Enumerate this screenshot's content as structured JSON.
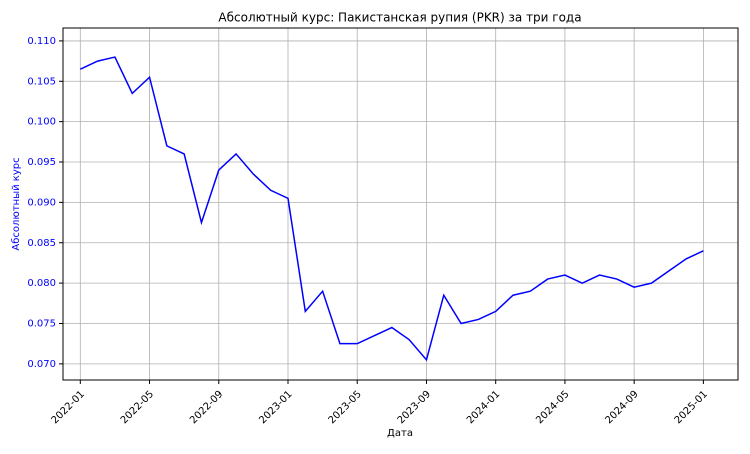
{
  "chart_data": {
    "type": "line",
    "title": "Абсолютный курс: Пакистанская рупия (PKR) за три года",
    "x_label": "Дата",
    "y_label": "Абсолютный курс",
    "x": [
      "2022-01",
      "2022-02",
      "2022-03",
      "2022-04",
      "2022-05",
      "2022-06",
      "2022-07",
      "2022-08",
      "2022-09",
      "2022-10",
      "2022-11",
      "2022-12",
      "2023-01",
      "2023-02",
      "2023-03",
      "2023-04",
      "2023-05",
      "2023-06",
      "2023-07",
      "2023-08",
      "2023-09",
      "2023-10",
      "2023-11",
      "2023-12",
      "2024-01",
      "2024-02",
      "2024-03",
      "2024-04",
      "2024-05",
      "2024-06",
      "2024-07",
      "2024-08",
      "2024-09",
      "2024-10",
      "2024-11",
      "2024-12",
      "2025-01"
    ],
    "series": [
      {
        "name": "PKR",
        "color": "#0000ff",
        "values": [
          0.1065,
          0.1075,
          0.108,
          0.1035,
          0.1055,
          0.097,
          0.096,
          0.0875,
          0.094,
          0.096,
          0.0935,
          0.0915,
          0.0905,
          0.0765,
          0.079,
          0.0725,
          0.0725,
          0.0735,
          0.0745,
          0.073,
          0.0705,
          0.0785,
          0.075,
          0.0755,
          0.0765,
          0.0785,
          0.079,
          0.0805,
          0.081,
          0.08,
          0.081,
          0.0805,
          0.0795,
          0.08,
          0.0815,
          0.083,
          0.084
        ]
      }
    ],
    "xlim": [
      "2021-12",
      "2025-03"
    ],
    "xticks": [
      "2022-01",
      "2022-05",
      "2022-09",
      "2023-01",
      "2023-05",
      "2023-09",
      "2024-01",
      "2024-05",
      "2024-09",
      "2025-01"
    ],
    "ylim": [
      0.068,
      0.1116
    ],
    "yticks": [
      {
        "value": 0.07,
        "label": "0.070"
      },
      {
        "value": 0.075,
        "label": "0.075"
      },
      {
        "value": 0.08,
        "label": "0.080"
      },
      {
        "value": 0.085,
        "label": "0.085"
      },
      {
        "value": 0.09,
        "label": "0.090"
      },
      {
        "value": 0.095,
        "label": "0.095"
      },
      {
        "value": 0.1,
        "label": "0.100"
      },
      {
        "value": 0.105,
        "label": "0.105"
      },
      {
        "value": 0.11,
        "label": "0.110"
      }
    ],
    "grid": true,
    "axis_label_color": "#0000ff"
  }
}
